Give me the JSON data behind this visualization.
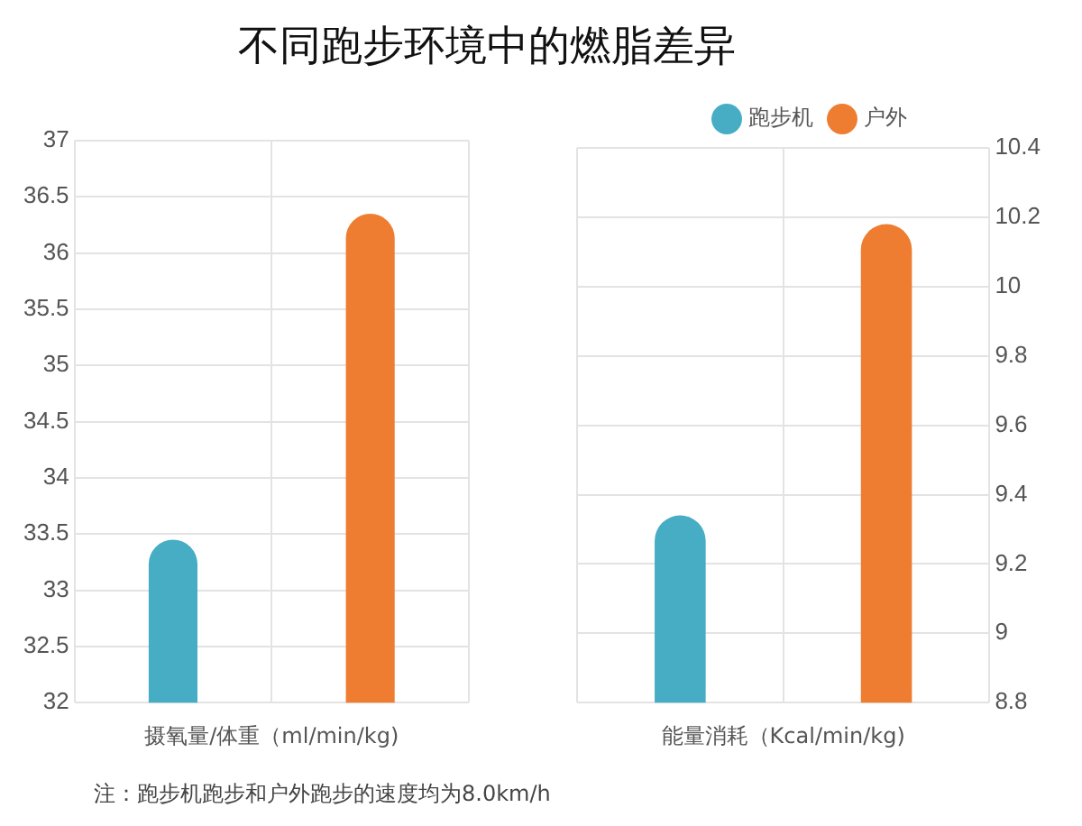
{
  "chart_data": [
    {
      "type": "bar",
      "title": "不同跑步环境中的燃脂差异",
      "xlabel": "摄氧量/体重（ml/min/kg)",
      "categories": [
        null,
        null
      ],
      "series": [
        {
          "color": "#46adc4",
          "values": [
            33.45,
            null
          ]
        },
        {
          "color": "#ee7d31",
          "values": [
            null,
            36.35
          ]
        }
      ],
      "ylim": [
        32,
        37
      ],
      "yticks": [
        32,
        32.5,
        33,
        33.5,
        34,
        34.5,
        35,
        35.5,
        36,
        36.5,
        37
      ],
      "grid": true,
      "legend": false,
      "annotations": [
        "注：跑步机跑步和户外跑步的速度均为8.0km/h"
      ]
    },
    {
      "type": "bar",
      "xlabel": "能量消耗（Kcal/min/kg)",
      "categories": [
        null,
        null
      ],
      "series": [
        {
          "name": "跑步机",
          "color": "#46adc4",
          "axis": "y2",
          "values": [
            9.34,
            null
          ]
        },
        {
          "name": "户外",
          "color": "#ee7d31",
          "axis": "y2",
          "values": [
            null,
            10.18
          ]
        }
      ],
      "y2lim": [
        8.8,
        10.4
      ],
      "y2ticks": [
        8.8,
        9,
        9.2,
        9.4,
        9.6,
        9.8,
        10,
        10.2,
        10.4
      ],
      "grid": true,
      "legend": "top"
    }
  ]
}
